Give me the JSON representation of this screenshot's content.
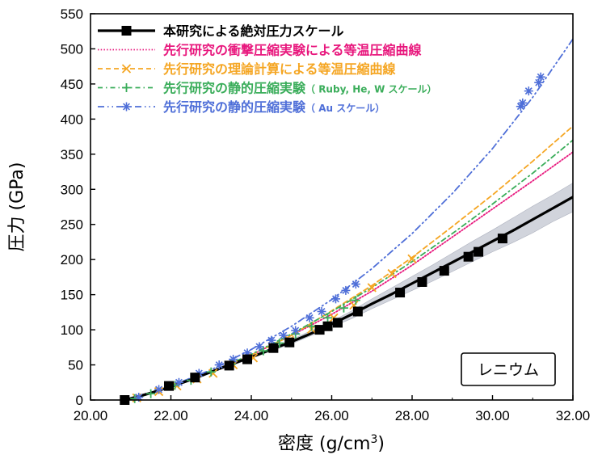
{
  "chart_data": {
    "type": "line",
    "title": "",
    "xlabel_main": "密度",
    "xlabel_unit_pre": " (g/cm",
    "xlabel_unit_sup": "3",
    "xlabel_unit_post": ")",
    "ylabel": "圧力 (GPa)",
    "xlim": [
      20.0,
      32.0
    ],
    "ylim": [
      0,
      550
    ],
    "xticks": [
      20.0,
      22.0,
      24.0,
      26.0,
      28.0,
      30.0,
      32.0
    ],
    "xtick_labels": [
      "20.00",
      "22.00",
      "24.00",
      "26.00",
      "28.00",
      "30.00",
      "32.00"
    ],
    "yticks": [
      0,
      50,
      100,
      150,
      200,
      250,
      300,
      350,
      400,
      450,
      500,
      550
    ],
    "ytick_labels": [
      "0",
      "50",
      "100",
      "150",
      "200",
      "250",
      "300",
      "350",
      "400",
      "450",
      "500",
      "550"
    ],
    "annotation": "レニウム",
    "legend_position": "top-left",
    "series": [
      {
        "name": "本研究による絶対圧力スケール",
        "name_suffix": "",
        "style": "solid-square",
        "color": "#000000",
        "band_color": "#c9ccd6",
        "curve_x": [
          20.85,
          21.5,
          22.0,
          22.6,
          23.0,
          23.5,
          24.0,
          24.5,
          25.0,
          25.5,
          26.0,
          26.5,
          27.0,
          27.5,
          28.0,
          28.5,
          29.0,
          29.5,
          30.0,
          30.5,
          31.0,
          31.5,
          32.0
        ],
        "curve_y": [
          0,
          10,
          19,
          31,
          40,
          51,
          61,
          72,
          83,
          95,
          108,
          122,
          137,
          151,
          166,
          181,
          196,
          211,
          226,
          241,
          257,
          273,
          289
        ],
        "band_lower": [
          0,
          10,
          19,
          30,
          39,
          49,
          59,
          70,
          80,
          92,
          104,
          116,
          130,
          143,
          156,
          169,
          183,
          197,
          211,
          224,
          238,
          254,
          268
        ],
        "band_upper": [
          0,
          10,
          20,
          32,
          41,
          53,
          63,
          74,
          86,
          99,
          112,
          127,
          144,
          160,
          176,
          192,
          209,
          226,
          242,
          259,
          276,
          292,
          309
        ],
        "marker_x": [
          20.85,
          21.95,
          22.6,
          23.45,
          23.9,
          24.55,
          24.95,
          25.7,
          25.9,
          26.15,
          26.65,
          27.7,
          28.25,
          28.8,
          29.4,
          29.65,
          30.25
        ],
        "marker_y": [
          0,
          20,
          32,
          49,
          58,
          74,
          82,
          100,
          105,
          110,
          126,
          153,
          168,
          184,
          204,
          211,
          230
        ]
      },
      {
        "name": "先行研究の衝撃圧縮実験による等温圧縮曲線",
        "name_suffix": "",
        "style": "dotted",
        "color": "#e8177d",
        "curve_x": [
          21.0,
          22.0,
          23.0,
          24.0,
          25.0,
          26.0,
          27.0,
          28.0,
          29.0,
          30.0,
          31.0,
          32.0
        ],
        "curve_y": [
          0,
          19,
          40,
          64,
          92,
          122,
          155,
          192,
          232,
          272,
          312,
          353
        ],
        "marker_x": [],
        "marker_y": []
      },
      {
        "name": "先行研究の理論計算による等温圧縮曲線",
        "name_suffix": "",
        "style": "dashed-x",
        "color": "#f5a623",
        "curve_x": [
          21.0,
          22.0,
          23.0,
          24.0,
          25.0,
          26.0,
          27.0,
          28.0,
          29.0,
          30.0,
          31.0,
          32.0
        ],
        "curve_y": [
          0,
          19,
          40,
          64,
          92,
          127,
          163,
          203,
          247,
          292,
          340,
          390
        ],
        "marker_x": [
          21.15,
          21.7,
          22.15,
          22.65,
          23.05,
          23.55,
          24.05,
          24.55,
          24.95,
          25.5,
          26.05,
          26.55,
          27.0,
          27.5,
          28.0
        ],
        "marker_y": [
          3,
          12,
          20,
          30,
          38,
          50,
          60,
          74,
          85,
          101,
          117,
          135,
          160,
          180,
          201
        ]
      },
      {
        "name": "先行研究の静的圧縮実験",
        "name_suffix": "（ Ruby, He, W スケール）",
        "style": "dashdot-plus",
        "color": "#3aad5a",
        "curve_x": [
          21.0,
          22.0,
          23.0,
          24.0,
          25.0,
          26.0,
          27.0,
          28.0,
          29.0,
          30.0,
          31.0,
          32.0
        ],
        "curve_y": [
          0,
          19,
          40,
          65,
          94,
          126,
          160,
          197,
          237,
          279,
          323,
          370
        ],
        "marker_x": [
          21.1,
          21.5,
          22.1,
          22.5,
          23.0,
          23.5,
          23.9,
          24.3,
          24.7,
          25.1,
          25.5,
          25.9,
          26.3,
          26.6
        ],
        "marker_y": [
          2,
          9,
          21,
          28,
          40,
          51,
          61,
          70,
          81,
          94,
          105,
          117,
          131,
          142
        ]
      },
      {
        "name": "先行研究の静的圧縮実験",
        "name_suffix": "（ Au スケール）",
        "style": "dashdotdot-asterisk",
        "color": "#4f6fd8",
        "curve_x": [
          21.0,
          22.0,
          23.0,
          24.0,
          25.0,
          26.0,
          27.0,
          28.0,
          29.0,
          30.0,
          31.0,
          32.0
        ],
        "curve_y": [
          0,
          20,
          43,
          72,
          105,
          143,
          187,
          237,
          294,
          358,
          431,
          514
        ],
        "marker_x": [
          21.2,
          21.7,
          22.2,
          22.7,
          23.2,
          23.55,
          23.9,
          24.2,
          24.5,
          24.8,
          25.1,
          25.45,
          25.75,
          26.1,
          26.35,
          26.6,
          30.7,
          30.75,
          30.9,
          31.15,
          31.2
        ],
        "marker_y": [
          4,
          15,
          25,
          38,
          50,
          58,
          67,
          76,
          85,
          92,
          99,
          117,
          126,
          144,
          156,
          165,
          418,
          423,
          440,
          452,
          460
        ]
      }
    ]
  }
}
